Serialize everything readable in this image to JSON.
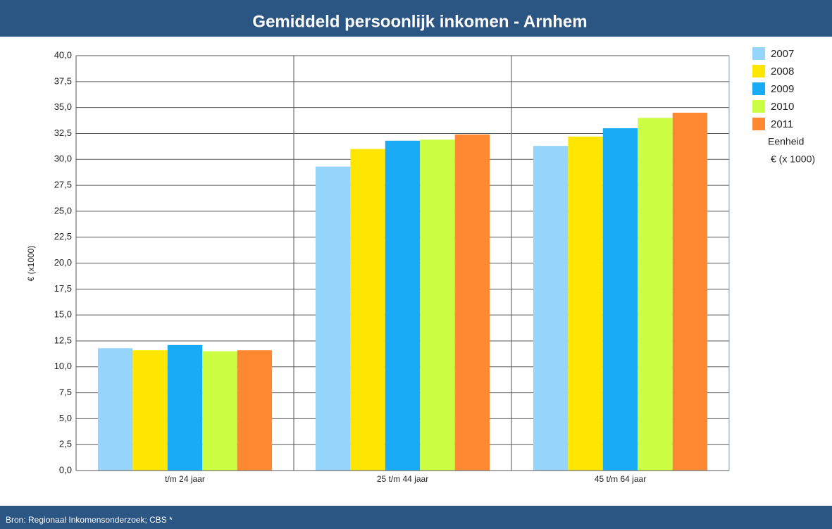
{
  "chart_data": {
    "type": "bar",
    "title": "Gemiddeld persoonlijk inkomen - Arnhem",
    "y_label": "€ (x1000)",
    "legend_note": "Eenheid",
    "legend_unit": "€ (x 1000)",
    "source": "Bron: Regionaal Inkomensonderzoek; CBS *",
    "categories": [
      "t/m 24 jaar",
      "25 t/m 44 jaar",
      "45 t/m 64 jaar"
    ],
    "series": [
      {
        "name": "2007",
        "color": "#96d5fb",
        "values": [
          11.8,
          29.3,
          31.3
        ]
      },
      {
        "name": "2008",
        "color": "#ffe600",
        "values": [
          11.6,
          31.0,
          32.2
        ]
      },
      {
        "name": "2009",
        "color": "#1aabf7",
        "values": [
          12.1,
          31.8,
          33.0
        ]
      },
      {
        "name": "2010",
        "color": "#ccff44",
        "values": [
          11.5,
          31.9,
          34.0
        ]
      },
      {
        "name": "2011",
        "color": "#ff8833",
        "values": [
          11.6,
          32.4,
          34.5
        ]
      }
    ],
    "ylim": [
      0,
      40
    ],
    "yticks": [
      {
        "value": 0,
        "label": "0,0"
      },
      {
        "value": 2.5,
        "label": "2,5"
      },
      {
        "value": 5,
        "label": "5,0"
      },
      {
        "value": 7.5,
        "label": "7,5"
      },
      {
        "value": 10,
        "label": "10,0"
      },
      {
        "value": 12.5,
        "label": "12,5"
      },
      {
        "value": 15,
        "label": "15,0"
      },
      {
        "value": 17.5,
        "label": "17,5"
      },
      {
        "value": 20,
        "label": "20,0"
      },
      {
        "value": 22.5,
        "label": "22,5"
      },
      {
        "value": 25,
        "label": "25,0"
      },
      {
        "value": 27.5,
        "label": "27,5"
      },
      {
        "value": 30,
        "label": "30,0"
      },
      {
        "value": 32.5,
        "label": "32,5"
      },
      {
        "value": 35,
        "label": "35,0"
      },
      {
        "value": 37.5,
        "label": "37,5"
      },
      {
        "value": 40,
        "label": "40,0"
      }
    ],
    "grid": true
  }
}
